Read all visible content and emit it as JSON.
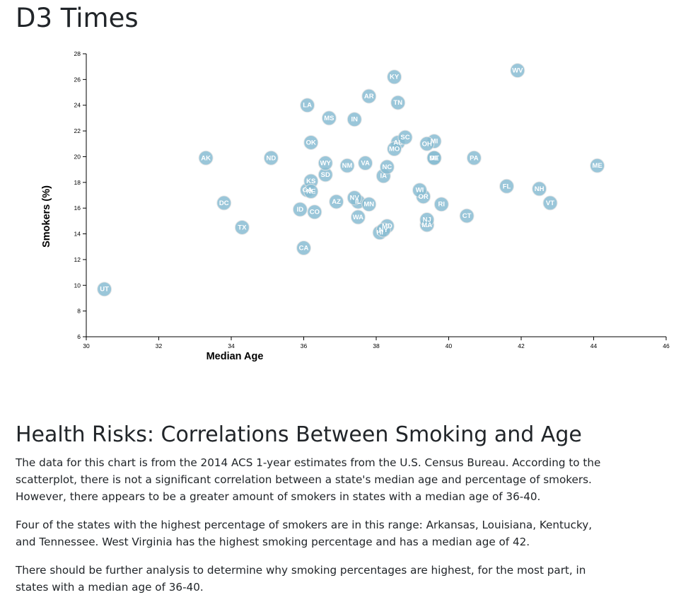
{
  "page": {
    "title": "D3 Times"
  },
  "chart_data": {
    "type": "scatter",
    "xlabel": "Median Age",
    "ylabel": "Smokers (%)",
    "xlim": [
      30,
      46
    ],
    "ylim": [
      6,
      28
    ],
    "x_ticks": [
      30,
      32,
      34,
      36,
      38,
      40,
      42,
      44,
      46
    ],
    "y_ticks": [
      6,
      8,
      10,
      12,
      14,
      16,
      18,
      20,
      22,
      24,
      26,
      28
    ],
    "grid": false,
    "points": [
      {
        "label": "AL",
        "x": 38.6,
        "y": 21.1
      },
      {
        "label": "AK",
        "x": 33.3,
        "y": 19.9
      },
      {
        "label": "AZ",
        "x": 36.9,
        "y": 16.5
      },
      {
        "label": "AR",
        "x": 37.8,
        "y": 24.7
      },
      {
        "label": "CA",
        "x": 36.0,
        "y": 12.9
      },
      {
        "label": "CO",
        "x": 36.3,
        "y": 15.7
      },
      {
        "label": "CT",
        "x": 40.5,
        "y": 15.4
      },
      {
        "label": "DE",
        "x": 39.6,
        "y": 19.9
      },
      {
        "label": "DC",
        "x": 33.8,
        "y": 16.4
      },
      {
        "label": "FL",
        "x": 41.6,
        "y": 17.7
      },
      {
        "label": "GA",
        "x": 36.1,
        "y": 17.4
      },
      {
        "label": "HI",
        "x": 38.1,
        "y": 14.1
      },
      {
        "label": "ID",
        "x": 35.9,
        "y": 15.9
      },
      {
        "label": "IL",
        "x": 37.5,
        "y": 16.5
      },
      {
        "label": "IN",
        "x": 37.4,
        "y": 22.9
      },
      {
        "label": "IA",
        "x": 38.2,
        "y": 18.5
      },
      {
        "label": "KS",
        "x": 36.2,
        "y": 18.1
      },
      {
        "label": "KY",
        "x": 38.5,
        "y": 26.2
      },
      {
        "label": "LA",
        "x": 36.1,
        "y": 24.0
      },
      {
        "label": "ME",
        "x": 44.1,
        "y": 19.3
      },
      {
        "label": "MD",
        "x": 38.3,
        "y": 14.6
      },
      {
        "label": "MA",
        "x": 39.4,
        "y": 14.7
      },
      {
        "label": "MI",
        "x": 39.6,
        "y": 21.2
      },
      {
        "label": "MN",
        "x": 37.8,
        "y": 16.3
      },
      {
        "label": "MS",
        "x": 36.7,
        "y": 23.0
      },
      {
        "label": "MO",
        "x": 38.5,
        "y": 20.6
      },
      {
        "label": "MT",
        "x": 39.6,
        "y": 19.9
      },
      {
        "label": "NE",
        "x": 36.2,
        "y": 17.3
      },
      {
        "label": "NV",
        "x": 37.4,
        "y": 16.8
      },
      {
        "label": "NH",
        "x": 42.5,
        "y": 17.5
      },
      {
        "label": "NJ",
        "x": 39.4,
        "y": 15.1
      },
      {
        "label": "NM",
        "x": 37.2,
        "y": 19.3
      },
      {
        "label": "NY",
        "x": 38.2,
        "y": 14.3
      },
      {
        "label": "NC",
        "x": 38.3,
        "y": 19.2
      },
      {
        "label": "ND",
        "x": 35.1,
        "y": 19.9
      },
      {
        "label": "OH",
        "x": 39.4,
        "y": 21.0
      },
      {
        "label": "OK",
        "x": 36.2,
        "y": 21.1
      },
      {
        "label": "OR",
        "x": 39.3,
        "y": 16.9
      },
      {
        "label": "PA",
        "x": 40.7,
        "y": 19.9
      },
      {
        "label": "RI",
        "x": 39.8,
        "y": 16.3
      },
      {
        "label": "SC",
        "x": 38.8,
        "y": 21.5
      },
      {
        "label": "SD",
        "x": 36.6,
        "y": 18.6
      },
      {
        "label": "TN",
        "x": 38.6,
        "y": 24.2
      },
      {
        "label": "TX",
        "x": 34.3,
        "y": 14.5
      },
      {
        "label": "UT",
        "x": 30.5,
        "y": 9.7
      },
      {
        "label": "VT",
        "x": 42.8,
        "y": 16.4
      },
      {
        "label": "VA",
        "x": 37.7,
        "y": 19.5
      },
      {
        "label": "WA",
        "x": 37.5,
        "y": 15.3
      },
      {
        "label": "WV",
        "x": 41.9,
        "y": 26.7
      },
      {
        "label": "WI",
        "x": 39.2,
        "y": 17.4
      },
      {
        "label": "WY",
        "x": 36.6,
        "y": 19.5
      }
    ]
  },
  "article": {
    "heading": "Health Risks: Correlations Between Smoking and Age",
    "paragraphs": [
      "The data for this chart is from the 2014 ACS 1-year estimates from the U.S. Census Bureau. According to the scatterplot, there is not a significant correlation between a state's median age and percentage of smokers. However, there appears to be a greater amount of smokers in states with a median age of 36-40.",
      "Four of the states with the highest percentage of smokers are in this range: Arkansas, Louisiana, Kentucky, and Tennessee. West Virginia has the highest smoking percentage and has a median age of 42.",
      "There should be further analysis to determine why smoking percentages are highest, for the most part, in states with a median age of 36-40."
    ]
  }
}
